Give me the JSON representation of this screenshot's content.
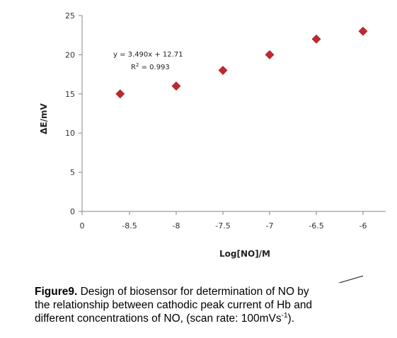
{
  "chart_data": {
    "type": "scatter",
    "x": [
      -8.6,
      -8.0,
      -7.5,
      -7.0,
      -6.5,
      -6.0
    ],
    "y": [
      15,
      16,
      18,
      20,
      22,
      23
    ],
    "trendline": {
      "slope": 3.49,
      "intercept": 12.71
    },
    "xlabel": "Log[NO]/M",
    "ylabel": "ΔE/mV",
    "x_ticks": [
      {
        "value": 0,
        "label": "0"
      },
      {
        "value": -8.5,
        "label": "-8.5"
      },
      {
        "value": -8,
        "label": "-8"
      },
      {
        "value": -7.5,
        "label": "-7.5"
      },
      {
        "value": -7,
        "label": "-7"
      },
      {
        "value": -6.5,
        "label": "-6.5"
      },
      {
        "value": -6,
        "label": "-6"
      }
    ],
    "y_ticks": [
      {
        "value": 0,
        "label": "0"
      },
      {
        "value": 5,
        "label": "5"
      },
      {
        "value": 10,
        "label": "10"
      },
      {
        "value": 15,
        "label": "15"
      },
      {
        "value": 20,
        "label": "20"
      },
      {
        "value": 25,
        "label": "25"
      }
    ],
    "ylim": [
      0,
      25
    ],
    "annotations": [
      "y = 3.490x + 12.71",
      "R",
      "2",
      " = 0.993"
    ],
    "grid": false,
    "legend": "none",
    "marker_color": "#c0282d",
    "line_color": "#333333"
  },
  "caption": {
    "label": "Figure9.",
    "line1": " Design of biosensor for determination of NO by",
    "line2": "the relationship between cathodic peak current of Hb and",
    "line3": "different concentrations of NO, (scan rate: 100mVs",
    "sup": "-1",
    "end": ")."
  }
}
